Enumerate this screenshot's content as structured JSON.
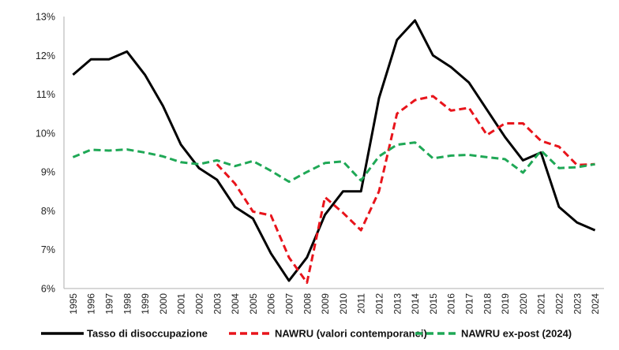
{
  "chart_data": {
    "type": "line",
    "title": "",
    "xlabel": "",
    "ylabel": "",
    "ylim": [
      6,
      13
    ],
    "yticks": [
      "6%",
      "7%",
      "8%",
      "9%",
      "10%",
      "11%",
      "12%",
      "13%"
    ],
    "grid": false,
    "legend_position": "bottom",
    "categories": [
      "1995",
      "1996",
      "1997",
      "1998",
      "1999",
      "2000",
      "2001",
      "2002",
      "2003",
      "2004",
      "2005",
      "2006",
      "2007",
      "2008",
      "2009",
      "2010",
      "2011",
      "2012",
      "2013",
      "2014",
      "2015",
      "2016",
      "2017",
      "2018",
      "2019",
      "2020",
      "2021",
      "2022",
      "2023",
      "2024"
    ],
    "series": [
      {
        "name": "Tasso di disoccupazione",
        "color": "#000000",
        "dash": "solid",
        "values": [
          11.5,
          11.9,
          11.9,
          12.1,
          11.5,
          10.7,
          9.7,
          9.1,
          8.8,
          8.1,
          7.8,
          6.9,
          6.2,
          6.8,
          7.9,
          8.5,
          8.5,
          10.9,
          12.4,
          12.9,
          12.0,
          11.7,
          11.3,
          10.6,
          9.9,
          9.3,
          9.5,
          8.1,
          7.7,
          7.5
        ]
      },
      {
        "name": "NAWRU (valori contemporanei)",
        "color": "#e8141b",
        "dash": "dashed",
        "values": [
          null,
          null,
          null,
          null,
          null,
          null,
          null,
          null,
          9.2,
          8.7,
          7.98,
          7.88,
          6.8,
          6.15,
          8.35,
          7.95,
          7.5,
          8.5,
          10.5,
          10.85,
          10.95,
          10.58,
          10.65,
          9.95,
          10.25,
          10.25,
          9.8,
          9.65,
          9.18,
          9.2
        ]
      },
      {
        "name": "NAWRU ex-post (2024)",
        "color": "#1fa856",
        "dash": "dashed",
        "values": [
          9.38,
          9.57,
          9.55,
          9.58,
          9.5,
          9.4,
          9.25,
          9.2,
          9.3,
          9.15,
          9.28,
          9.03,
          8.75,
          9.0,
          9.23,
          9.27,
          8.78,
          9.4,
          9.7,
          9.76,
          9.35,
          9.42,
          9.44,
          9.38,
          9.33,
          8.98,
          9.55,
          9.1,
          9.12,
          9.2
        ]
      }
    ]
  }
}
